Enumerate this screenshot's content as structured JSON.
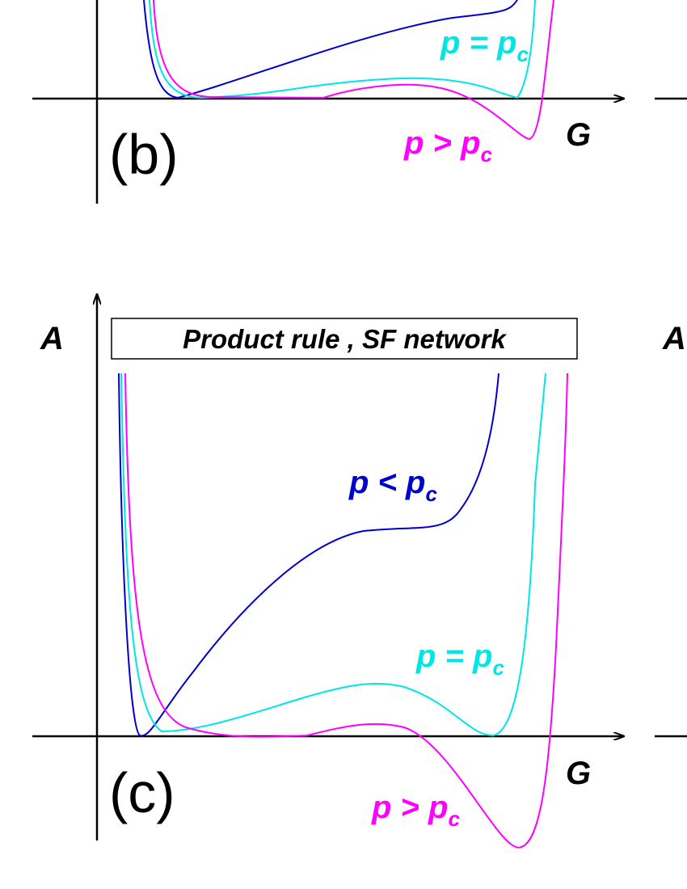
{
  "panels": [
    {
      "label": "(b)",
      "x_axis": "G",
      "curves": [
        {
          "name": "p = p",
          "sub": "c"
        },
        {
          "name": "p > p",
          "sub": "c"
        }
      ]
    },
    {
      "label": "(c)",
      "y_axis": "A",
      "box": "Product rule , SF network",
      "x_axis": "G",
      "curves": [
        {
          "name": "p < p",
          "sub": "c"
        },
        {
          "name": "p = p",
          "sub": "c"
        },
        {
          "name": "p > p",
          "sub": "c"
        }
      ]
    }
  ],
  "neighbor": {
    "y_axis": "A"
  }
}
